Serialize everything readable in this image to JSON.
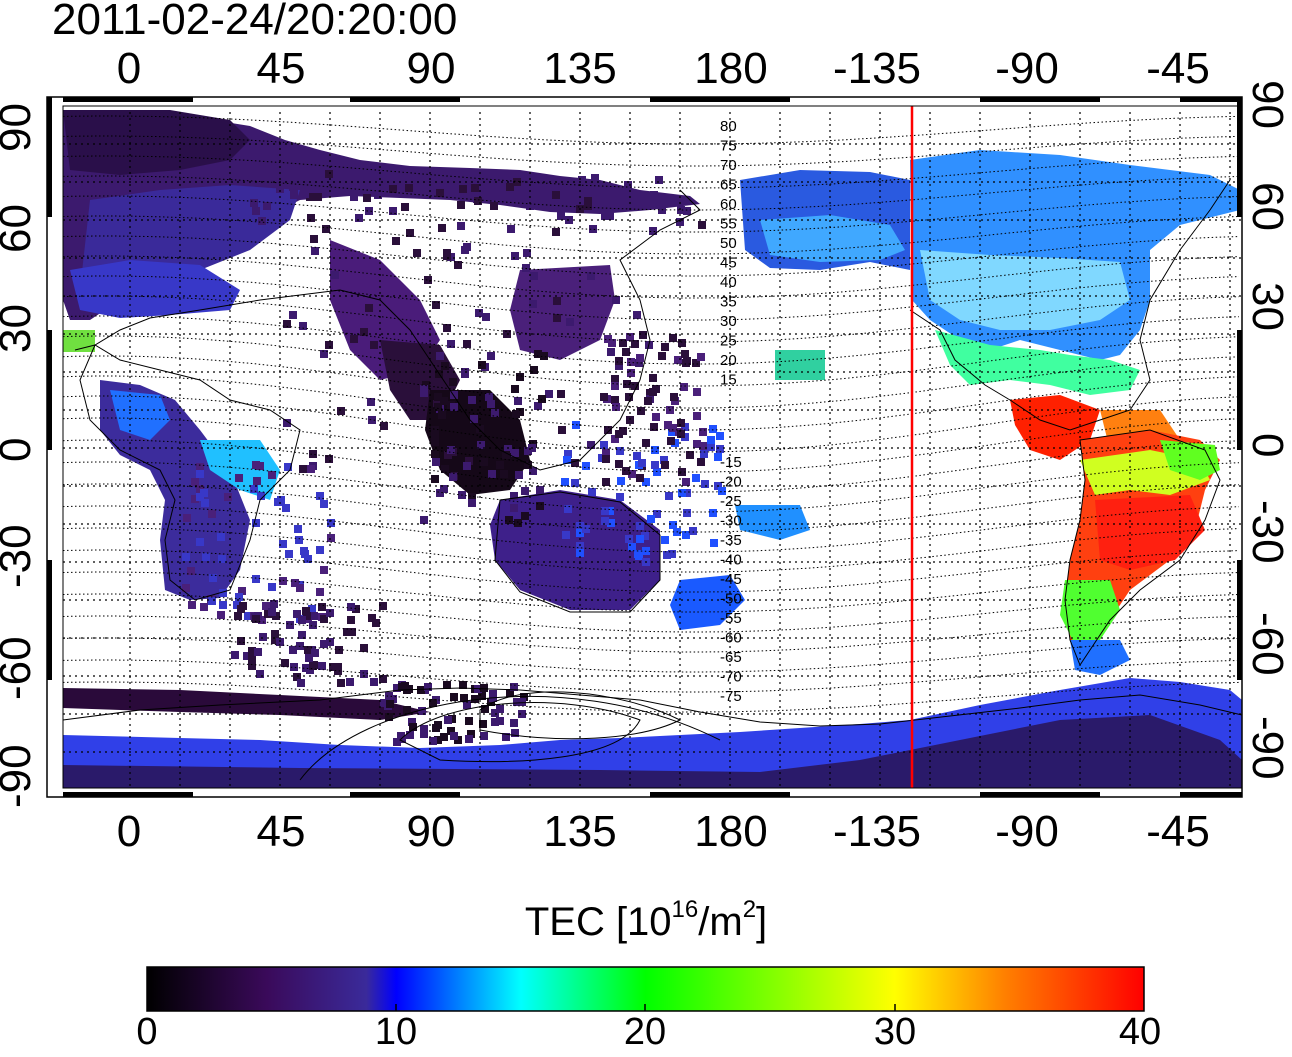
{
  "title": "2011-02-24/20:20:00",
  "longitude_ticks": [
    "0",
    "45",
    "90",
    "135",
    "180",
    "-135",
    "-90",
    "-45"
  ],
  "latitude_ticks": [
    "90",
    "60",
    "30",
    "0",
    "-30",
    "-60",
    "-90"
  ],
  "contour_labels_north": [
    "80",
    "75",
    "70",
    "65",
    "60",
    "55",
    "50",
    "45",
    "40",
    "35",
    "30",
    "25",
    "20",
    "15"
  ],
  "contour_labels_south": [
    "-15",
    "-20",
    "-25",
    "-30",
    "-35",
    "-40",
    "-45",
    "-50",
    "-55",
    "-60",
    "-65",
    "-70",
    "-75"
  ],
  "colorbar": {
    "label_prefix": "TEC  [10",
    "label_exp1": "16",
    "label_mid": "/m",
    "label_exp2": "2",
    "label_suffix": "]",
    "ticks": [
      "0",
      "10",
      "20",
      "30",
      "40"
    ],
    "min": 0,
    "max": 40
  },
  "colors": {
    "terminator_line": "#ff0000",
    "colorbar_stops": [
      "#000000",
      "#3a0a5a",
      "#3a2a9a",
      "#0000ff",
      "#00ffff",
      "#00ff00",
      "#ffff00",
      "#ff8000",
      "#ff0000"
    ]
  }
}
